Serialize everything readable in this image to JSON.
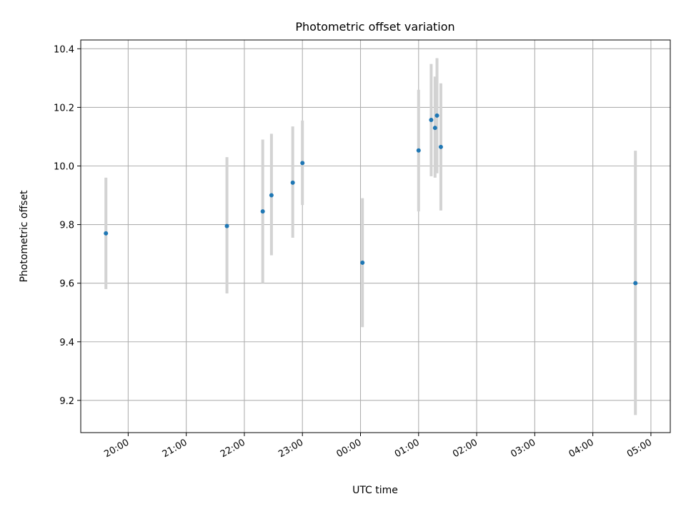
{
  "chart_data": {
    "type": "scatter",
    "title": "Photometric offset variation",
    "xlabel": "UTC time",
    "ylabel": "Photometric offset",
    "grid": true,
    "x_ticks": [
      "20:00",
      "21:00",
      "22:00",
      "23:00",
      "00:00",
      "01:00",
      "02:00",
      "03:00",
      "04:00",
      "05:00"
    ],
    "y_ticks": [
      "9.2",
      "9.4",
      "9.6",
      "9.8",
      "10.0",
      "10.2",
      "10.4"
    ],
    "xlim": [
      "19:11",
      "05:20"
    ],
    "ylim": [
      9.09,
      10.43
    ],
    "colors": {
      "point": "#1f77b4",
      "errorbar": "#d3d3d3",
      "grid": "#b0b0b0"
    },
    "series": [
      {
        "points": [
          {
            "x": "19:37",
            "y": 9.77,
            "yerr_low": 9.58,
            "yerr_high": 9.96
          },
          {
            "x": "21:42",
            "y": 9.795,
            "yerr_low": 9.565,
            "yerr_high": 10.03
          },
          {
            "x": "22:19",
            "y": 9.845,
            "yerr_low": 9.6,
            "yerr_high": 10.09
          },
          {
            "x": "22:28",
            "y": 9.9,
            "yerr_low": 9.695,
            "yerr_high": 10.11
          },
          {
            "x": "22:50",
            "y": 9.943,
            "yerr_low": 9.755,
            "yerr_high": 10.135
          },
          {
            "x": "23:00",
            "y": 10.01,
            "yerr_low": 9.867,
            "yerr_high": 10.155
          },
          {
            "x": "00:02",
            "y": 9.67,
            "yerr_low": 9.45,
            "yerr_high": 9.89
          },
          {
            "x": "01:00",
            "y": 10.053,
            "yerr_low": 9.845,
            "yerr_high": 10.26
          },
          {
            "x": "01:13",
            "y": 10.157,
            "yerr_low": 9.965,
            "yerr_high": 10.348
          },
          {
            "x": "01:17",
            "y": 10.13,
            "yerr_low": 9.96,
            "yerr_high": 10.305
          },
          {
            "x": "01:19",
            "y": 10.172,
            "yerr_low": 9.975,
            "yerr_high": 10.368
          },
          {
            "x": "01:23",
            "y": 10.065,
            "yerr_low": 9.848,
            "yerr_high": 10.282
          },
          {
            "x": "04:44",
            "y": 9.6,
            "yerr_low": 9.15,
            "yerr_high": 10.052
          }
        ]
      }
    ]
  }
}
